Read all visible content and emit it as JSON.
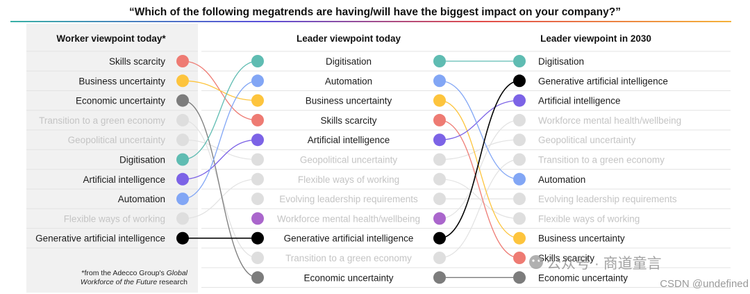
{
  "title": "“Which of the following megatrends are having/will have the biggest impact on your company?”",
  "colors": {
    "skills": "#ee7b73",
    "business": "#fdc43d",
    "economic": "#7c7c7c",
    "green": "#dedede",
    "geopolitical": "#dedede",
    "digitisation": "#5fbcb2",
    "ai": "#7c63e6",
    "automation": "#82a6f5",
    "flexible": "#dedede",
    "genai": "#000000",
    "wellbeing": "#aa66cc",
    "leadership": "#dedede",
    "muted_text": "#c4c4c4",
    "strong_text": "#1a1a1a"
  },
  "chart_data": {
    "type": "slope",
    "columns": [
      {
        "key": "worker",
        "header": "Worker viewpoint today*",
        "items": [
          {
            "label": "Skills scarcity",
            "id": "skills",
            "highlight": true
          },
          {
            "label": "Business uncertainty",
            "id": "business",
            "highlight": true
          },
          {
            "label": "Economic uncertainty",
            "id": "economic",
            "highlight": true
          },
          {
            "label": "Transition to a green economy",
            "id": "green",
            "highlight": false
          },
          {
            "label": "Geopolitical uncertainty",
            "id": "geopolitical",
            "highlight": false
          },
          {
            "label": "Digitisation",
            "id": "digitisation",
            "highlight": true
          },
          {
            "label": "Artificial intelligence",
            "id": "ai",
            "highlight": true
          },
          {
            "label": "Automation",
            "id": "automation",
            "highlight": true
          },
          {
            "label": "Flexible ways of working",
            "id": "flexible",
            "highlight": false
          },
          {
            "label": "Generative artificial intelligence",
            "id": "genai",
            "highlight": true
          }
        ]
      },
      {
        "key": "leader_today",
        "header": "Leader viewpoint today",
        "items": [
          {
            "label": "Digitisation",
            "id": "digitisation",
            "highlight": true
          },
          {
            "label": "Automation",
            "id": "automation",
            "highlight": true
          },
          {
            "label": "Business uncertainty",
            "id": "business",
            "highlight": true
          },
          {
            "label": "Skills scarcity",
            "id": "skills",
            "highlight": true
          },
          {
            "label": "Artificial intelligence",
            "id": "ai",
            "highlight": true
          },
          {
            "label": "Geopolitical uncertainty",
            "id": "geopolitical",
            "highlight": false
          },
          {
            "label": "Flexible ways of working",
            "id": "flexible",
            "highlight": false
          },
          {
            "label": "Evolving leadership requirements",
            "id": "leadership",
            "highlight": false
          },
          {
            "label": "Workforce mental health/wellbeing",
            "id": "wellbeing",
            "highlight": false
          },
          {
            "label": "Generative artificial intelligence",
            "id": "genai",
            "highlight": true
          },
          {
            "label": "Transition to a green economy",
            "id": "green",
            "highlight": false
          },
          {
            "label": "Economic uncertainty",
            "id": "economic",
            "highlight": true
          }
        ]
      },
      {
        "key": "leader_2030",
        "header": "Leader viewpoint in 2030",
        "items": [
          {
            "label": "Digitisation",
            "id": "digitisation",
            "highlight": true
          },
          {
            "label": "Generative artificial intelligence",
            "id": "genai",
            "highlight": true
          },
          {
            "label": "Artificial intelligence",
            "id": "ai",
            "highlight": true
          },
          {
            "label": "Workforce mental health/wellbeing",
            "id": "wellbeing",
            "highlight": false
          },
          {
            "label": "Geopolitical uncertainty",
            "id": "geopolitical",
            "highlight": false
          },
          {
            "label": "Transition to a green economy",
            "id": "green",
            "highlight": false
          },
          {
            "label": "Automation",
            "id": "automation",
            "highlight": true
          },
          {
            "label": "Evolving leadership requirements",
            "id": "leadership",
            "highlight": false
          },
          {
            "label": "Flexible ways of working",
            "id": "flexible",
            "highlight": false
          },
          {
            "label": "Business uncertainty",
            "id": "business",
            "highlight": true
          },
          {
            "label": "Skills scarcity",
            "id": "skills",
            "highlight": true
          },
          {
            "label": "Economic uncertainty",
            "id": "economic",
            "highlight": true
          }
        ]
      }
    ],
    "muted_dot_overrides": {
      "leader_2030": {
        "wellbeing": true
      }
    },
    "connections": [
      {
        "id": "skills"
      },
      {
        "id": "business"
      },
      {
        "id": "economic"
      },
      {
        "id": "digitisation"
      },
      {
        "id": "ai"
      },
      {
        "id": "automation"
      },
      {
        "id": "genai"
      }
    ]
  },
  "footnote": {
    "line1_prefix": "*from the Adecco Group's ",
    "line1_italic": "Global",
    "line2_italic": "Workforce of the Future",
    "line2_suffix": " research"
  },
  "watermark": {
    "wechat": "公众号 · 商道童言",
    "csdn": "CSDN @undefined"
  }
}
